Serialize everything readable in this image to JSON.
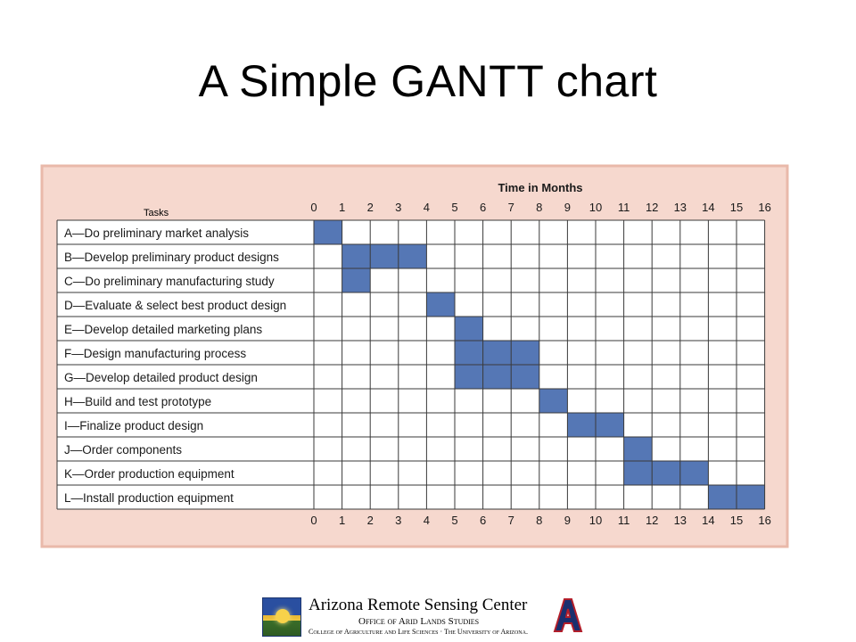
{
  "slide": {
    "title": "A Simple GANTT chart"
  },
  "chart_data": {
    "type": "gantt",
    "title": "",
    "column_header": "Tasks",
    "axis_label": "Time in Months",
    "xlim": [
      0,
      16
    ],
    "ticks": [
      "0",
      "1",
      "2",
      "3",
      "4",
      "5",
      "6",
      "7",
      "8",
      "9",
      "10",
      "11",
      "12",
      "13",
      "14",
      "15",
      "16"
    ],
    "tasks": [
      {
        "label": "A—Do preliminary market analysis",
        "start": 0,
        "end": 1
      },
      {
        "label": "B—Develop preliminary product designs",
        "start": 1,
        "end": 4
      },
      {
        "label": "C—Do preliminary manufacturing study",
        "start": 1,
        "end": 2
      },
      {
        "label": "D—Evaluate & select best product design",
        "start": 4,
        "end": 5
      },
      {
        "label": "E—Develop detailed marketing plans",
        "start": 5,
        "end": 6
      },
      {
        "label": "F—Design manufacturing process",
        "start": 5,
        "end": 8
      },
      {
        "label": "G—Develop detailed product design",
        "start": 5,
        "end": 8
      },
      {
        "label": "H—Build and test prototype",
        "start": 8,
        "end": 9
      },
      {
        "label": "I—Finalize product design",
        "start": 9,
        "end": 11
      },
      {
        "label": "J—Order components",
        "start": 11,
        "end": 12
      },
      {
        "label": "K—Order production equipment",
        "start": 11,
        "end": 14
      },
      {
        "label": "L—Install production equipment",
        "start": 14,
        "end": 16
      }
    ],
    "colors": {
      "bar": "#5577b5",
      "panel": "#f6d8ce",
      "panel_border": "#e9b9aa",
      "grid": "#3a3a3a",
      "text": "#1a1a1a"
    }
  },
  "footer": {
    "center_name": "Arizona Remote Sensing Center",
    "office": "Office of Arid Lands Studies",
    "college": "College of Agriculture and Life Sciences · The University of Arizona."
  }
}
